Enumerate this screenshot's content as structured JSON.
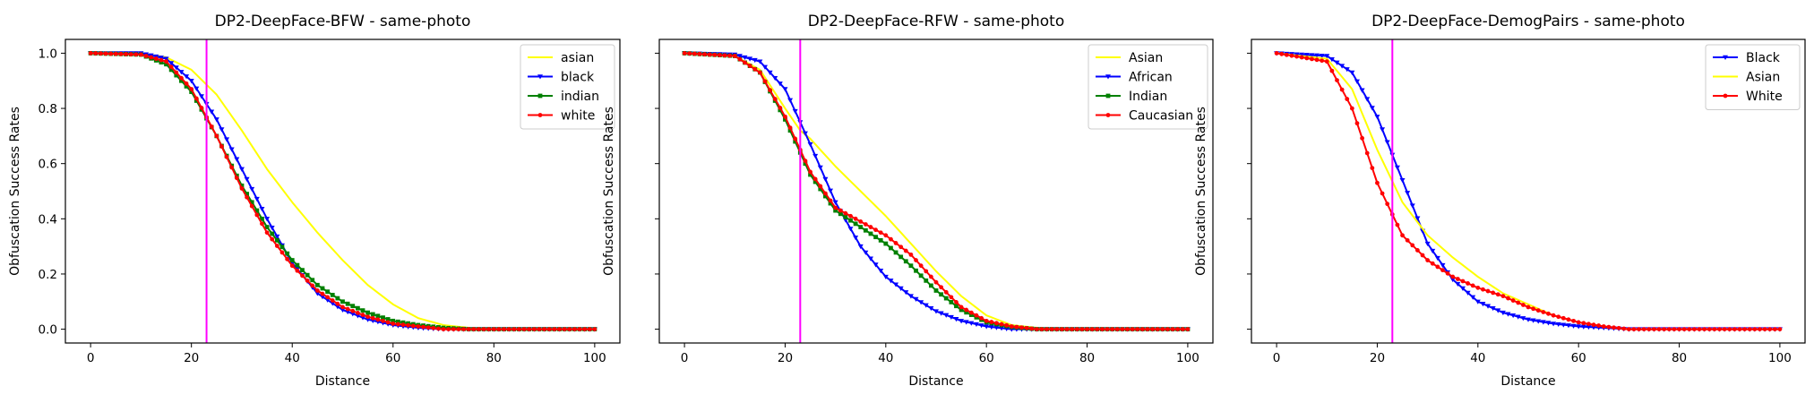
{
  "chart_data": [
    {
      "type": "line",
      "title": "DP2-DeepFace-BFW - same-photo",
      "xlabel": "Distance",
      "ylabel": "Obfuscation Success Rates",
      "xlim": [
        -5,
        105
      ],
      "ylim": [
        -0.05,
        1.05
      ],
      "xticks": [
        0,
        20,
        40,
        60,
        80,
        100
      ],
      "yticks": [
        0.0,
        0.2,
        0.4,
        0.6,
        0.8,
        1.0
      ],
      "show_ytick_labels": true,
      "vline": 23,
      "vline_color": "#ff00ff",
      "legend_position": "top-right",
      "series": [
        {
          "name": "asian",
          "color": "#ffff00",
          "marker": "none",
          "points": [
            [
              0,
              1.0
            ],
            [
              10,
              1.0
            ],
            [
              15,
              0.985
            ],
            [
              20,
              0.94
            ],
            [
              25,
              0.85
            ],
            [
              30,
              0.72
            ],
            [
              35,
              0.58
            ],
            [
              40,
              0.46
            ],
            [
              45,
              0.35
            ],
            [
              50,
              0.25
            ],
            [
              55,
              0.16
            ],
            [
              60,
              0.09
            ],
            [
              65,
              0.04
            ],
            [
              70,
              0.015
            ],
            [
              75,
              0.005
            ],
            [
              80,
              0.0
            ],
            [
              100,
              0.0
            ]
          ]
        },
        {
          "name": "black",
          "color": "#0000ff",
          "marker": "triangle",
          "points": [
            [
              0,
              1.0
            ],
            [
              10,
              1.0
            ],
            [
              15,
              0.98
            ],
            [
              20,
              0.9
            ],
            [
              25,
              0.76
            ],
            [
              30,
              0.58
            ],
            [
              35,
              0.4
            ],
            [
              40,
              0.24
            ],
            [
              45,
              0.13
            ],
            [
              50,
              0.07
            ],
            [
              55,
              0.035
            ],
            [
              60,
              0.015
            ],
            [
              65,
              0.005
            ],
            [
              70,
              0.0
            ],
            [
              100,
              0.0
            ]
          ]
        },
        {
          "name": "indian",
          "color": "#008000",
          "marker": "square",
          "points": [
            [
              0,
              1.0
            ],
            [
              10,
              0.995
            ],
            [
              15,
              0.96
            ],
            [
              20,
              0.86
            ],
            [
              25,
              0.7
            ],
            [
              30,
              0.52
            ],
            [
              35,
              0.37
            ],
            [
              40,
              0.25
            ],
            [
              45,
              0.16
            ],
            [
              50,
              0.1
            ],
            [
              55,
              0.06
            ],
            [
              60,
              0.03
            ],
            [
              65,
              0.015
            ],
            [
              70,
              0.005
            ],
            [
              75,
              0.0
            ],
            [
              100,
              0.0
            ]
          ]
        },
        {
          "name": "white",
          "color": "#ff0000",
          "marker": "circle",
          "points": [
            [
              0,
              1.0
            ],
            [
              10,
              0.995
            ],
            [
              15,
              0.97
            ],
            [
              20,
              0.87
            ],
            [
              25,
              0.7
            ],
            [
              30,
              0.51
            ],
            [
              35,
              0.35
            ],
            [
              40,
              0.23
            ],
            [
              45,
              0.14
            ],
            [
              50,
              0.08
            ],
            [
              55,
              0.045
            ],
            [
              60,
              0.02
            ],
            [
              65,
              0.01
            ],
            [
              70,
              0.0
            ],
            [
              100,
              0.0
            ]
          ]
        }
      ]
    },
    {
      "type": "line",
      "title": "DP2-DeepFace-RFW - same-photo",
      "xlabel": "Distance",
      "ylabel": "Obfuscation Success Rates",
      "xlim": [
        -5,
        105
      ],
      "ylim": [
        -0.05,
        1.05
      ],
      "xticks": [
        0,
        20,
        40,
        60,
        80,
        100
      ],
      "yticks": [
        0.0,
        0.2,
        0.4,
        0.6,
        0.8,
        1.0
      ],
      "show_ytick_labels": false,
      "vline": 23,
      "vline_color": "#ff00ff",
      "legend_position": "top-right",
      "series": [
        {
          "name": "Asian",
          "color": "#ffff00",
          "marker": "none",
          "points": [
            [
              0,
              1.0
            ],
            [
              10,
              0.99
            ],
            [
              15,
              0.94
            ],
            [
              20,
              0.8
            ],
            [
              23,
              0.72
            ],
            [
              25,
              0.69
            ],
            [
              30,
              0.59
            ],
            [
              35,
              0.5
            ],
            [
              40,
              0.41
            ],
            [
              45,
              0.31
            ],
            [
              50,
              0.21
            ],
            [
              55,
              0.12
            ],
            [
              60,
              0.05
            ],
            [
              65,
              0.015
            ],
            [
              70,
              0.005
            ],
            [
              75,
              0.0
            ],
            [
              100,
              0.0
            ]
          ]
        },
        {
          "name": "African",
          "color": "#0000ff",
          "marker": "triangle",
          "points": [
            [
              0,
              1.0
            ],
            [
              10,
              0.995
            ],
            [
              15,
              0.97
            ],
            [
              20,
              0.87
            ],
            [
              25,
              0.67
            ],
            [
              30,
              0.46
            ],
            [
              35,
              0.3
            ],
            [
              40,
              0.19
            ],
            [
              45,
              0.12
            ],
            [
              50,
              0.065
            ],
            [
              55,
              0.03
            ],
            [
              60,
              0.01
            ],
            [
              65,
              0.0
            ],
            [
              100,
              0.0
            ]
          ]
        },
        {
          "name": "Indian",
          "color": "#008000",
          "marker": "square",
          "points": [
            [
              0,
              1.0
            ],
            [
              10,
              0.99
            ],
            [
              15,
              0.93
            ],
            [
              20,
              0.76
            ],
            [
              25,
              0.56
            ],
            [
              30,
              0.43
            ],
            [
              35,
              0.37
            ],
            [
              40,
              0.31
            ],
            [
              45,
              0.23
            ],
            [
              50,
              0.14
            ],
            [
              55,
              0.07
            ],
            [
              60,
              0.025
            ],
            [
              65,
              0.008
            ],
            [
              70,
              0.0
            ],
            [
              100,
              0.0
            ]
          ]
        },
        {
          "name": "Caucasian",
          "color": "#ff0000",
          "marker": "circle",
          "points": [
            [
              0,
              1.0
            ],
            [
              10,
              0.99
            ],
            [
              15,
              0.93
            ],
            [
              20,
              0.77
            ],
            [
              25,
              0.57
            ],
            [
              30,
              0.44
            ],
            [
              35,
              0.39
            ],
            [
              40,
              0.34
            ],
            [
              45,
              0.27
            ],
            [
              50,
              0.17
            ],
            [
              55,
              0.08
            ],
            [
              60,
              0.03
            ],
            [
              65,
              0.01
            ],
            [
              70,
              0.0
            ],
            [
              100,
              0.0
            ]
          ]
        }
      ]
    },
    {
      "type": "line",
      "title": "DP2-DeepFace-DemogPairs - same-photo",
      "xlabel": "Distance",
      "ylabel": "Obfuscation Success Rates",
      "xlim": [
        -5,
        105
      ],
      "ylim": [
        -0.05,
        1.05
      ],
      "xticks": [
        0,
        20,
        40,
        60,
        80,
        100
      ],
      "yticks": [
        0.0,
        0.2,
        0.4,
        0.6,
        0.8,
        1.0
      ],
      "show_ytick_labels": false,
      "vline": 23,
      "vline_color": "#ff00ff",
      "legend_position": "top-right",
      "series": [
        {
          "name": "Black",
          "color": "#0000ff",
          "marker": "triangle",
          "points": [
            [
              0,
              1.0
            ],
            [
              10,
              0.99
            ],
            [
              15,
              0.93
            ],
            [
              20,
              0.77
            ],
            [
              25,
              0.54
            ],
            [
              30,
              0.31
            ],
            [
              35,
              0.18
            ],
            [
              40,
              0.1
            ],
            [
              45,
              0.06
            ],
            [
              50,
              0.035
            ],
            [
              55,
              0.02
            ],
            [
              60,
              0.01
            ],
            [
              65,
              0.005
            ],
            [
              70,
              0.0
            ],
            [
              100,
              0.0
            ]
          ]
        },
        {
          "name": "Asian",
          "color": "#ffff00",
          "marker": "none",
          "points": [
            [
              0,
              1.0
            ],
            [
              10,
              0.98
            ],
            [
              15,
              0.87
            ],
            [
              20,
              0.65
            ],
            [
              25,
              0.46
            ],
            [
              30,
              0.34
            ],
            [
              35,
              0.26
            ],
            [
              40,
              0.19
            ],
            [
              45,
              0.13
            ],
            [
              50,
              0.09
            ],
            [
              55,
              0.05
            ],
            [
              60,
              0.025
            ],
            [
              65,
              0.01
            ],
            [
              70,
              0.0
            ],
            [
              100,
              0.0
            ]
          ]
        },
        {
          "name": "White",
          "color": "#ff0000",
          "marker": "circle",
          "points": [
            [
              0,
              1.0
            ],
            [
              10,
              0.97
            ],
            [
              15,
              0.8
            ],
            [
              20,
              0.53
            ],
            [
              25,
              0.34
            ],
            [
              30,
              0.25
            ],
            [
              35,
              0.19
            ],
            [
              40,
              0.15
            ],
            [
              45,
              0.12
            ],
            [
              50,
              0.08
            ],
            [
              55,
              0.05
            ],
            [
              60,
              0.025
            ],
            [
              65,
              0.01
            ],
            [
              70,
              0.0
            ],
            [
              100,
              0.0
            ]
          ]
        }
      ]
    }
  ]
}
